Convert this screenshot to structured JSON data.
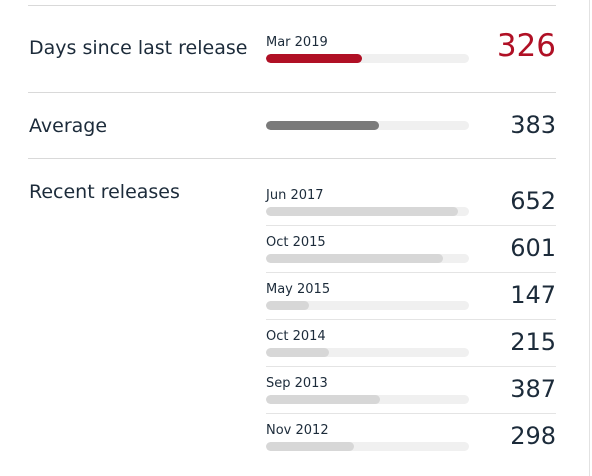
{
  "colors": {
    "accent": "#b01025",
    "average_bar": "#7a7a7a",
    "release_bar": "#d7d7d7",
    "track": "#f0f0f0",
    "text": "#1c2b3a"
  },
  "scale_max_days": 690,
  "current": {
    "label": "Days since last release",
    "date": "Mar 2019",
    "days": 326
  },
  "average": {
    "label": "Average",
    "days": 383
  },
  "recent": {
    "label": "Recent releases",
    "items": [
      {
        "date": "Jun 2017",
        "days": 652
      },
      {
        "date": "Oct 2015",
        "days": 601
      },
      {
        "date": "May 2015",
        "days": 147
      },
      {
        "date": "Oct 2014",
        "days": 215
      },
      {
        "date": "Sep 2013",
        "days": 387
      },
      {
        "date": "Nov 2012",
        "days": 298
      }
    ]
  }
}
